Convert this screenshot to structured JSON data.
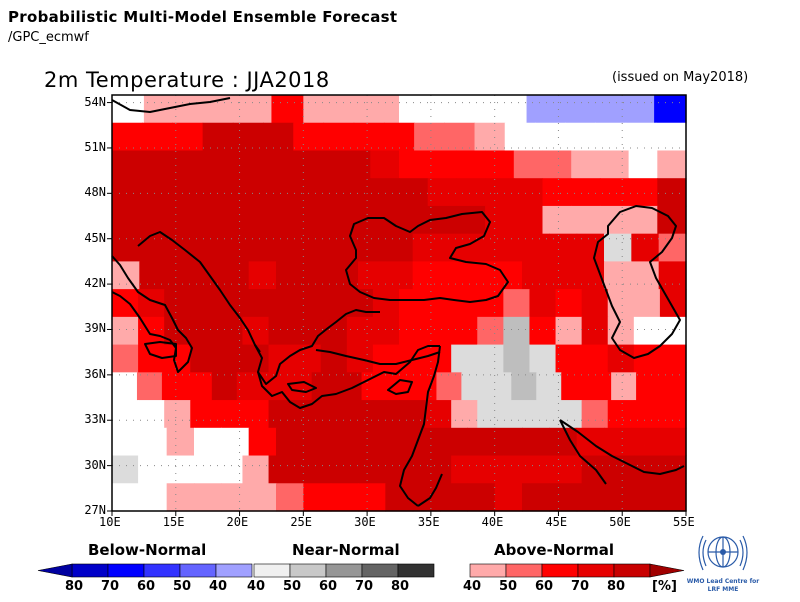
{
  "header": {
    "title": "Probabilistic Multi-Model Ensemble Forecast",
    "subtitle": "/GPC_ecmwf"
  },
  "map": {
    "title": "2m Temperature : JJA2018",
    "issued": "(issued on May2018)",
    "lon_labels": [
      "10E",
      "15E",
      "20E",
      "25E",
      "30E",
      "35E",
      "40E",
      "45E",
      "50E",
      "55E"
    ],
    "lat_labels": [
      "54N",
      "51N",
      "48N",
      "45N",
      "42N",
      "39N",
      "36N",
      "33N",
      "30N",
      "27N"
    ],
    "grid_legend": {
      "a": "#ff0000",
      "b": "#e60000",
      "c": "#cc0000",
      "d": "#ff6666",
      "e": "#ffaaaa",
      "W": "#ffffff",
      "L": "#dcdcdc",
      "M": "#bebebe",
      "B": "#a0a0ff",
      "N": "#0000ff"
    },
    "grid_rows": [
      "WeeeeaeeeWWWWBBBBN",
      "aaacccaaaaddeWWWWWW",
      "cccccccccbaaaaddeeWe",
      "cccccccccccbbbbaaaac",
      "cccccccccccccbbeeeec",
      "cccccccccccbbbbbbbLbd",
      "eccccbcccbbaaaabbbeeb",
      "abccccccccbaaaadbabeeb",
      "eacccbcccbbaaadMaebeWW",
      "daacccbbcbaaaLLMLaabaa",
      "WdaacbbbccaaadLLMLaaeaa",
      "WWeaaaccccccbeLLLLdaaa",
      "WWeWWacccccccccccbbbb",
      "LWWWWecccccccbbbbbcccc",
      "WWeeeedaaaccccbcccccc"
    ]
  },
  "legend": {
    "below_normal": {
      "label": "Below-Normal",
      "values": [
        "80",
        "70",
        "60",
        "50",
        "40"
      ],
      "colors": [
        "#0000c8",
        "#0000ff",
        "#3232ff",
        "#6464ff",
        "#a0a0ff"
      ]
    },
    "near_normal": {
      "label": "Near-Normal",
      "values": [
        "40",
        "50",
        "60",
        "70",
        "80"
      ],
      "colors": [
        "#f0f0f0",
        "#c8c8c8",
        "#969696",
        "#646464",
        "#323232"
      ]
    },
    "above_normal": {
      "label": "Above-Normal",
      "values": [
        "40",
        "50",
        "60",
        "70",
        "80"
      ],
      "colors": [
        "#ffaaaa",
        "#ff6666",
        "#ff0000",
        "#e60000",
        "#c80000"
      ],
      "unit": "[%]"
    }
  },
  "logo": {
    "line1": "WMO Lead Centre for",
    "line2": "LRF MME"
  }
}
